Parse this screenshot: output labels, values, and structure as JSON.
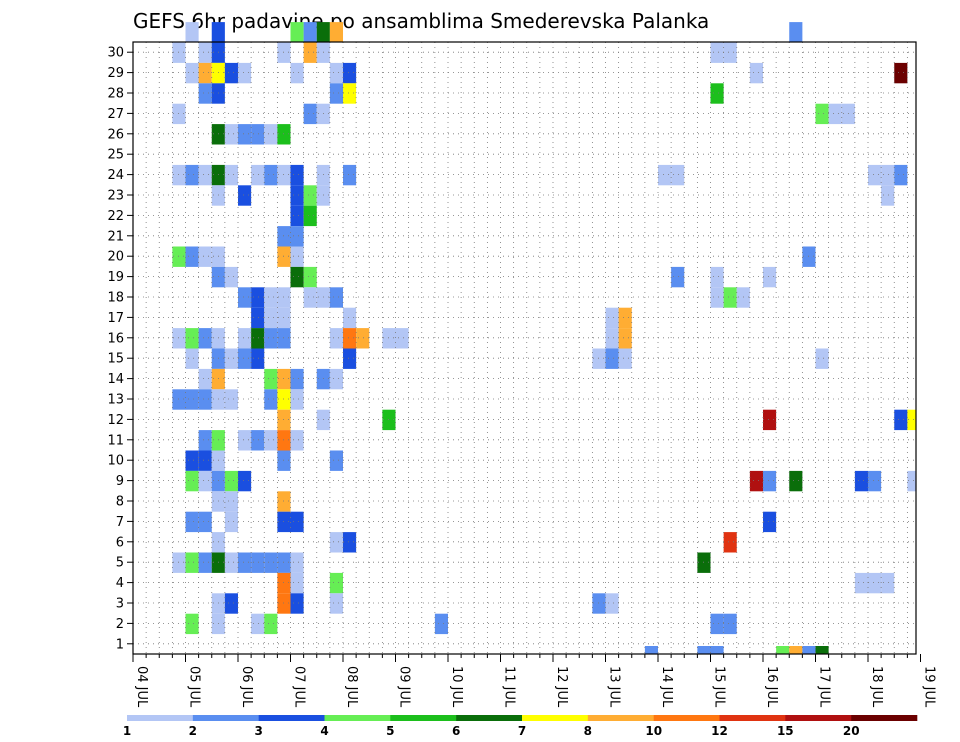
{
  "chart_data": {
    "type": "heatmap",
    "title": "GEFS 6hr padavine po ansamblima Smederevska Palanka",
    "xlabel": "",
    "ylabel": "",
    "x_ticks": [
      "04 JUL",
      "05 JUL",
      "06 JUL",
      "07 JUL",
      "08 JUL",
      "09 JUL",
      "10 JUL",
      "11 JUL",
      "12 JUL",
      "13 JUL",
      "14 JUL",
      "15 JUL",
      "16 JUL",
      "17 JUL",
      "18 JUL",
      "19 JUL"
    ],
    "y_ticks": [
      1,
      2,
      3,
      4,
      5,
      6,
      7,
      8,
      9,
      10,
      11,
      12,
      13,
      14,
      15,
      16,
      17,
      18,
      19,
      20,
      21,
      22,
      23,
      24,
      25,
      26,
      27,
      28,
      29,
      30
    ],
    "time_step_hours": 6,
    "members": 30,
    "grid": true,
    "legend": {
      "placement": "bottom",
      "levels": [
        "1",
        "2",
        "3",
        "4",
        "5",
        "6",
        "7",
        "8",
        "10",
        "12",
        "15",
        "20"
      ],
      "colors": [
        "#b3c6f5",
        "#5a8ef0",
        "#1a4fe0",
        "#66ee55",
        "#1cbf1c",
        "#0a6e0a",
        "#ffff00",
        "#ffad33",
        "#ff7711",
        "#e03311",
        "#b01010",
        "#6b0000"
      ]
    },
    "cells": [
      [
        30,
        5.0,
        1
      ],
      [
        30,
        5.5,
        3
      ],
      [
        30,
        7.0,
        4
      ],
      [
        30,
        7.25,
        2
      ],
      [
        30,
        7.5,
        6
      ],
      [
        30,
        7.75,
        8
      ],
      [
        30,
        16.5,
        2
      ],
      [
        29,
        4.75,
        1
      ],
      [
        29,
        5.25,
        1
      ],
      [
        29,
        5.5,
        3
      ],
      [
        29,
        6.75,
        1
      ],
      [
        29,
        7.25,
        8
      ],
      [
        29,
        7.5,
        1
      ],
      [
        29,
        15.0,
        1
      ],
      [
        29,
        15.25,
        1
      ],
      [
        28,
        5.0,
        1
      ],
      [
        28,
        5.25,
        8
      ],
      [
        28,
        5.5,
        7
      ],
      [
        28,
        5.75,
        3
      ],
      [
        28,
        6.0,
        1
      ],
      [
        28,
        7.0,
        1
      ],
      [
        28,
        7.75,
        1
      ],
      [
        28,
        8.0,
        3
      ],
      [
        28,
        15.75,
        1
      ],
      [
        28,
        18.5,
        20
      ],
      [
        27,
        5.25,
        2
      ],
      [
        27,
        5.5,
        3
      ],
      [
        27,
        7.75,
        2
      ],
      [
        27,
        8.0,
        7
      ],
      [
        27,
        15.0,
        5
      ],
      [
        26,
        4.75,
        1
      ],
      [
        26,
        7.25,
        2
      ],
      [
        26,
        7.5,
        1
      ],
      [
        26,
        17.0,
        4
      ],
      [
        26,
        17.25,
        1
      ],
      [
        26,
        17.5,
        1
      ],
      [
        25,
        5.5,
        6
      ],
      [
        25,
        5.75,
        1
      ],
      [
        25,
        6.0,
        2
      ],
      [
        25,
        6.25,
        2
      ],
      [
        25,
        6.5,
        1
      ],
      [
        25,
        6.75,
        5
      ],
      [
        23,
        4.75,
        1
      ],
      [
        23,
        5.0,
        2
      ],
      [
        23,
        5.25,
        1
      ],
      [
        23,
        5.5,
        6
      ],
      [
        23,
        5.75,
        1
      ],
      [
        23,
        6.25,
        1
      ],
      [
        23,
        6.5,
        2
      ],
      [
        23,
        6.75,
        1
      ],
      [
        23,
        7.0,
        3
      ],
      [
        23,
        7.5,
        1
      ],
      [
        23,
        8.0,
        2
      ],
      [
        23,
        14.0,
        1
      ],
      [
        23,
        14.25,
        1
      ],
      [
        23,
        18.0,
        1
      ],
      [
        23,
        18.25,
        1
      ],
      [
        23,
        18.5,
        2
      ],
      [
        22,
        5.5,
        1
      ],
      [
        22,
        6.0,
        3
      ],
      [
        22,
        7.0,
        3
      ],
      [
        22,
        7.25,
        4
      ],
      [
        22,
        7.5,
        1
      ],
      [
        22,
        18.25,
        1
      ],
      [
        21,
        7.0,
        3
      ],
      [
        21,
        7.25,
        5
      ],
      [
        20,
        6.75,
        2
      ],
      [
        20,
        7.0,
        2
      ],
      [
        19,
        4.75,
        4
      ],
      [
        19,
        5.0,
        2
      ],
      [
        19,
        5.25,
        1
      ],
      [
        19,
        5.5,
        1
      ],
      [
        19,
        6.75,
        8
      ],
      [
        19,
        7.0,
        1
      ],
      [
        19,
        16.75,
        2
      ],
      [
        18,
        5.5,
        2
      ],
      [
        18,
        5.75,
        1
      ],
      [
        18,
        7.0,
        6
      ],
      [
        18,
        7.25,
        4
      ],
      [
        18,
        14.25,
        2
      ],
      [
        18,
        15.0,
        1
      ],
      [
        18,
        16.0,
        1
      ],
      [
        17,
        6.0,
        2
      ],
      [
        17,
        6.25,
        3
      ],
      [
        17,
        6.5,
        1
      ],
      [
        17,
        6.75,
        1
      ],
      [
        17,
        7.25,
        1
      ],
      [
        17,
        7.5,
        1
      ],
      [
        17,
        7.75,
        2
      ],
      [
        17,
        15.0,
        1
      ],
      [
        17,
        15.25,
        4
      ],
      [
        17,
        15.5,
        1
      ],
      [
        16,
        6.25,
        3
      ],
      [
        16,
        6.5,
        1
      ],
      [
        16,
        6.75,
        1
      ],
      [
        16,
        8.0,
        1
      ],
      [
        16,
        13.0,
        1
      ],
      [
        16,
        13.25,
        8
      ],
      [
        15,
        4.75,
        1
      ],
      [
        15,
        5.0,
        4
      ],
      [
        15,
        5.25,
        2
      ],
      [
        15,
        5.5,
        1
      ],
      [
        15,
        6.0,
        1
      ],
      [
        15,
        6.25,
        6
      ],
      [
        15,
        6.5,
        2
      ],
      [
        15,
        6.75,
        2
      ],
      [
        15,
        7.75,
        1
      ],
      [
        15,
        8.0,
        10
      ],
      [
        15,
        8.25,
        8
      ],
      [
        15,
        8.75,
        1
      ],
      [
        15,
        9.0,
        1
      ],
      [
        15,
        13.0,
        1
      ],
      [
        15,
        13.25,
        8
      ],
      [
        14,
        5.0,
        1
      ],
      [
        14,
        5.5,
        2
      ],
      [
        14,
        5.75,
        1
      ],
      [
        14,
        6.0,
        2
      ],
      [
        14,
        6.25,
        3
      ],
      [
        14,
        8.0,
        3
      ],
      [
        14,
        12.75,
        1
      ],
      [
        14,
        13.0,
        2
      ],
      [
        14,
        13.25,
        1
      ],
      [
        14,
        17.0,
        1
      ],
      [
        13,
        5.25,
        1
      ],
      [
        13,
        5.5,
        8
      ],
      [
        13,
        6.5,
        4
      ],
      [
        13,
        6.75,
        8
      ],
      [
        13,
        7.0,
        2
      ],
      [
        13,
        7.5,
        2
      ],
      [
        13,
        7.75,
        1
      ],
      [
        12,
        4.75,
        2
      ],
      [
        12,
        5.0,
        2
      ],
      [
        12,
        5.25,
        2
      ],
      [
        12,
        5.5,
        1
      ],
      [
        12,
        5.75,
        1
      ],
      [
        12,
        6.5,
        2
      ],
      [
        12,
        6.75,
        7
      ],
      [
        12,
        7.0,
        1
      ],
      [
        11,
        6.75,
        8
      ],
      [
        11,
        7.5,
        1
      ],
      [
        11,
        8.75,
        5
      ],
      [
        11,
        16.0,
        15
      ],
      [
        11,
        18.5,
        3
      ],
      [
        11,
        18.75,
        7
      ],
      [
        10,
        5.25,
        2
      ],
      [
        10,
        5.5,
        4
      ],
      [
        10,
        6.0,
        1
      ],
      [
        10,
        6.25,
        2
      ],
      [
        10,
        6.5,
        1
      ],
      [
        10,
        6.75,
        10
      ],
      [
        10,
        7.0,
        1
      ],
      [
        9,
        5.0,
        3
      ],
      [
        9,
        5.25,
        3
      ],
      [
        9,
        5.5,
        1
      ],
      [
        9,
        6.75,
        2
      ],
      [
        9,
        7.75,
        2
      ],
      [
        8,
        5.0,
        4
      ],
      [
        8,
        5.25,
        1
      ],
      [
        8,
        5.5,
        2
      ],
      [
        8,
        5.75,
        4
      ],
      [
        8,
        6.0,
        3
      ],
      [
        8,
        15.75,
        15
      ],
      [
        8,
        16.0,
        2
      ],
      [
        8,
        16.5,
        6
      ],
      [
        8,
        17.75,
        3
      ],
      [
        8,
        18.0,
        2
      ],
      [
        8,
        18.75,
        1
      ],
      [
        8,
        19.0,
        1
      ],
      [
        7,
        5.5,
        1
      ],
      [
        7,
        5.75,
        1
      ],
      [
        7,
        6.75,
        8
      ],
      [
        6,
        5.0,
        2
      ],
      [
        6,
        5.25,
        2
      ],
      [
        6,
        5.75,
        1
      ],
      [
        6,
        6.75,
        3
      ],
      [
        6,
        7.0,
        3
      ],
      [
        6,
        16.0,
        3
      ],
      [
        5,
        5.5,
        1
      ],
      [
        5,
        7.75,
        1
      ],
      [
        5,
        8.0,
        3
      ],
      [
        5,
        15.25,
        12
      ],
      [
        4,
        4.75,
        1
      ],
      [
        4,
        5.0,
        4
      ],
      [
        4,
        5.25,
        2
      ],
      [
        4,
        5.5,
        6
      ],
      [
        4,
        5.75,
        1
      ],
      [
        4,
        6.0,
        2
      ],
      [
        4,
        6.25,
        2
      ],
      [
        4,
        6.5,
        2
      ],
      [
        4,
        6.75,
        2
      ],
      [
        4,
        7.0,
        1
      ],
      [
        4,
        14.75,
        6
      ],
      [
        3,
        6.75,
        10
      ],
      [
        3,
        7.0,
        1
      ],
      [
        3,
        7.75,
        4
      ],
      [
        3,
        17.75,
        1
      ],
      [
        3,
        18.0,
        1
      ],
      [
        3,
        18.25,
        1
      ],
      [
        2,
        5.5,
        1
      ],
      [
        2,
        5.75,
        3
      ],
      [
        2,
        6.75,
        10
      ],
      [
        2,
        7.0,
        3
      ],
      [
        2,
        7.75,
        1
      ],
      [
        2,
        12.75,
        2
      ],
      [
        2,
        13.0,
        1
      ],
      [
        1,
        5.0,
        4
      ],
      [
        1,
        5.5,
        1
      ],
      [
        1,
        6.25,
        1
      ],
      [
        1,
        6.5,
        4
      ],
      [
        1,
        9.75,
        2
      ],
      [
        1,
        15.0,
        2
      ],
      [
        1,
        15.25,
        2
      ],
      [
        0,
        13.75,
        2
      ],
      [
        0,
        14.75,
        2
      ],
      [
        0,
        15.0,
        2
      ],
      [
        0,
        16.25,
        4
      ],
      [
        0,
        16.5,
        8
      ],
      [
        0,
        16.75,
        2
      ],
      [
        0,
        17.0,
        6
      ]
    ]
  }
}
